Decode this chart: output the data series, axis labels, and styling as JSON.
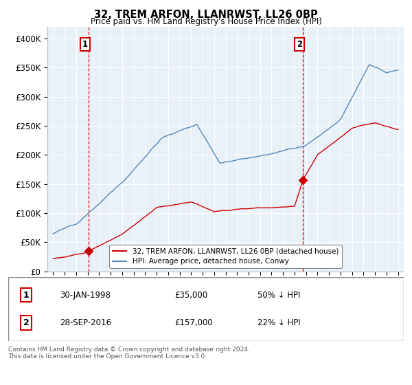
{
  "title": "32, TREM ARFON, LLANRWST, LL26 0BP",
  "subtitle": "Price paid vs. HM Land Registry's House Price Index (HPI)",
  "legend_line1": "32, TREM ARFON, LLANRWST, LL26 0BP (detached house)",
  "legend_line2": "HPI: Average price, detached house, Conwy",
  "annotation1_date": "30-JAN-1998",
  "annotation1_price": "£35,000",
  "annotation1_pct": "50% ↓ HPI",
  "annotation2_date": "28-SEP-2016",
  "annotation2_price": "£157,000",
  "annotation2_pct": "22% ↓ HPI",
  "footnote": "Contains HM Land Registry data © Crown copyright and database right 2024.\nThis data is licensed under the Open Government Licence v3.0.",
  "red_color": "#cc0000",
  "blue_color": "#5588bb",
  "bg_color": "#e8f0f8",
  "ylim_max": 420000,
  "sale1_year": 1998.08,
  "sale1_price": 35000,
  "sale2_year": 2016.74,
  "sale2_price": 157000
}
